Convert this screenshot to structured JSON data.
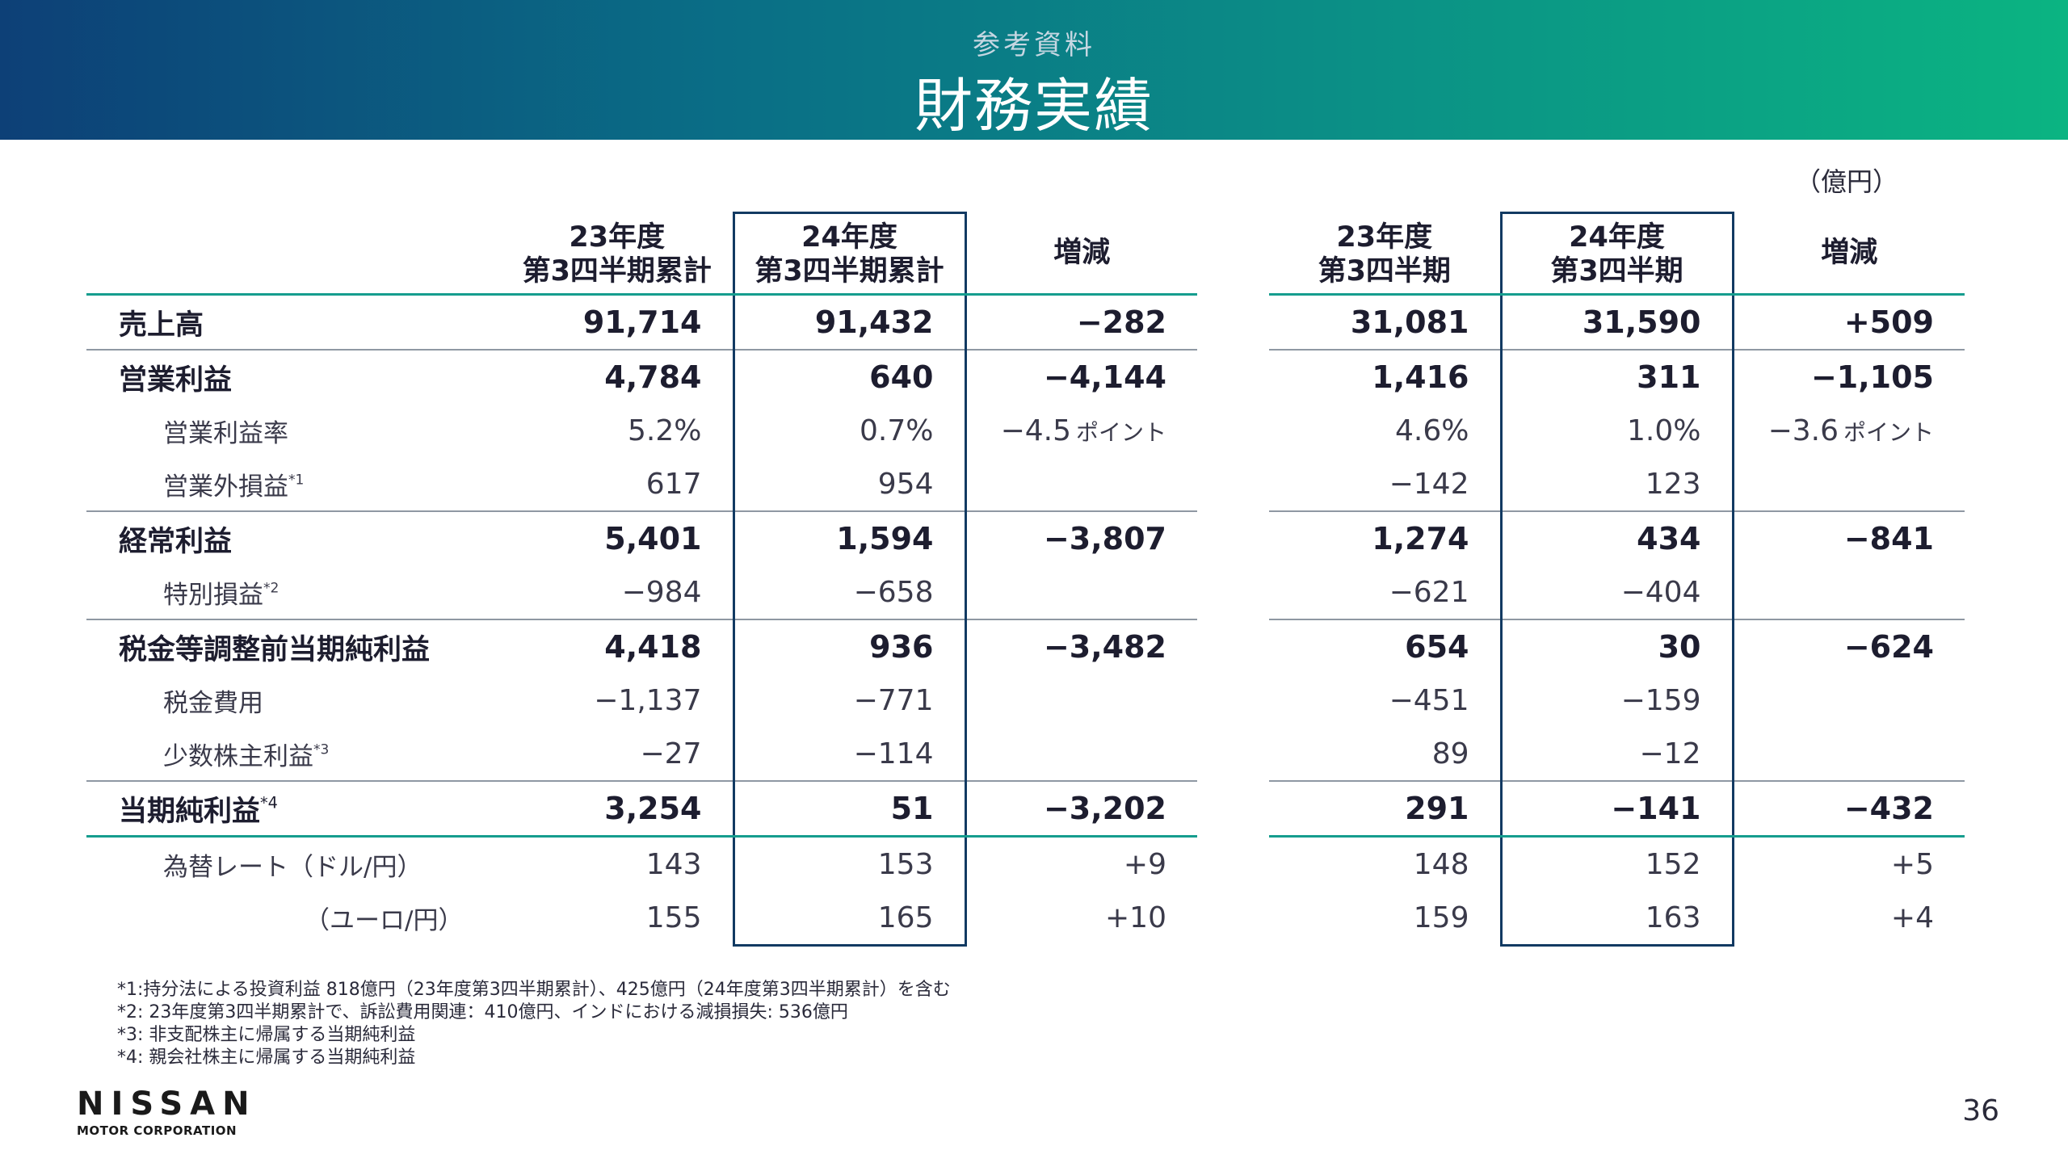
{
  "header": {
    "subtitle": "参考資料",
    "title": "財務実績"
  },
  "unit": "（億円）",
  "columns": {
    "ytd23_l1": "23年度",
    "ytd23_l2": "第3四半期累計",
    "ytd24_l1": "24年度",
    "ytd24_l2": "第3四半期累計",
    "diff": "増減",
    "q23_l1": "23年度",
    "q23_l2": "第3四半期",
    "q24_l1": "24年度",
    "q24_l2": "第3四半期"
  },
  "rows": {
    "sales": {
      "label": "売上高",
      "ytd23": "91,714",
      "ytd24": "91,432",
      "diff1": "−282",
      "q23": "31,081",
      "q24": "31,590",
      "diff2": "+509"
    },
    "op_profit": {
      "label": "営業利益",
      "ytd23": "4,784",
      "ytd24": "640",
      "diff1": "−4,144",
      "q23": "1,416",
      "q24": "311",
      "diff2": "−1,105"
    },
    "op_margin": {
      "label": "営業利益率",
      "ytd23": "5.2%",
      "ytd24": "0.7%",
      "diff1": "−4.5",
      "diff1_unit": "ポイント",
      "q23": "4.6%",
      "q24": "1.0%",
      "diff2": "−3.6",
      "diff2_unit": "ポイント"
    },
    "non_op": {
      "label": "営業外損益",
      "note": "*1",
      "ytd23": "617",
      "ytd24": "954",
      "q23": "−142",
      "q24": "123"
    },
    "ordinary": {
      "label": "経常利益",
      "ytd23": "5,401",
      "ytd24": "1,594",
      "diff1": "−3,807",
      "q23": "1,274",
      "q24": "434",
      "diff2": "−841"
    },
    "special": {
      "label": "特別損益",
      "note": "*2",
      "ytd23": "−984",
      "ytd24": "−658",
      "q23": "−621",
      "q24": "−404"
    },
    "pretax": {
      "label": "税金等調整前当期純利益",
      "ytd23": "4,418",
      "ytd24": "936",
      "diff1": "−3,482",
      "q23": "654",
      "q24": "30",
      "diff2": "−624"
    },
    "tax": {
      "label": "税金費用",
      "ytd23": "−1,137",
      "ytd24": "−771",
      "q23": "−451",
      "q24": "−159"
    },
    "minority": {
      "label": "少数株主利益",
      "note": "*3",
      "ytd23": "−27",
      "ytd24": "−114",
      "q23": "89",
      "q24": "−12"
    },
    "net": {
      "label": "当期純利益",
      "note": "*4",
      "ytd23": "3,254",
      "ytd24": "51",
      "diff1": "−3,202",
      "q23": "291",
      "q24": "−141",
      "diff2": "−432"
    },
    "fx_usd": {
      "label": "為替レート（ドル/円）",
      "ytd23": "143",
      "ytd24": "153",
      "diff1": "+9",
      "q23": "148",
      "q24": "152",
      "diff2": "+5"
    },
    "fx_eur": {
      "label": "（ユーロ/円）",
      "ytd23": "155",
      "ytd24": "165",
      "diff1": "+10",
      "q23": "159",
      "q24": "163",
      "diff2": "+4"
    }
  },
  "footnotes": [
    "*1:持分法による投資利益 818億円（23年度第3四半期累計）、425億円（24年度第3四半期累計）を含む",
    "*2: 23年度第3四半期累計で、訴訟費用関連：410億円、インドにおける減損損失: 536億円",
    "*3: 非支配株主に帰属する当期純利益",
    "*4: 親会社株主に帰属する当期純利益"
  ],
  "logo": {
    "name": "NISSAN",
    "sub": "MOTOR CORPORATION"
  },
  "page_number": "36"
}
